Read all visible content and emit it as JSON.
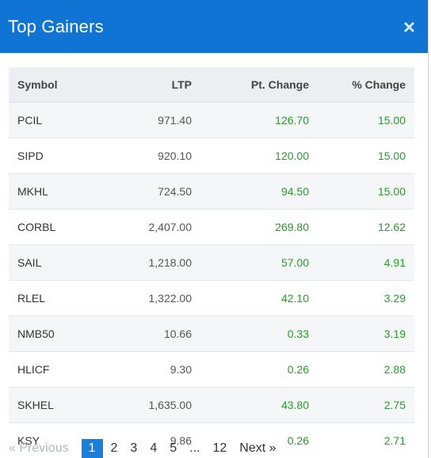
{
  "modal": {
    "title": "Top Gainers",
    "close_glyph": "×"
  },
  "table": {
    "columns": [
      "Symbol",
      "LTP",
      "Pt. Change",
      "% Change"
    ],
    "rows": [
      {
        "symbol": "PCIL",
        "ltp": "971.40",
        "pt_change": "126.70",
        "pct_change": "15.00"
      },
      {
        "symbol": "SIPD",
        "ltp": "920.10",
        "pt_change": "120.00",
        "pct_change": "15.00"
      },
      {
        "symbol": "MKHL",
        "ltp": "724.50",
        "pt_change": "94.50",
        "pct_change": "15.00"
      },
      {
        "symbol": "CORBL",
        "ltp": "2,407.00",
        "pt_change": "269.80",
        "pct_change": "12.62"
      },
      {
        "symbol": "SAIL",
        "ltp": "1,218.00",
        "pt_change": "57.00",
        "pct_change": "4.91"
      },
      {
        "symbol": "RLEL",
        "ltp": "1,322.00",
        "pt_change": "42.10",
        "pct_change": "3.29"
      },
      {
        "symbol": "NMB50",
        "ltp": "10.66",
        "pt_change": "0.33",
        "pct_change": "3.19"
      },
      {
        "symbol": "HLICF",
        "ltp": "9.30",
        "pt_change": "0.26",
        "pct_change": "2.88"
      },
      {
        "symbol": "SKHEL",
        "ltp": "1,635.00",
        "pt_change": "43.80",
        "pct_change": "2.75"
      },
      {
        "symbol": "KSY",
        "ltp": "9.86",
        "pt_change": "0.26",
        "pct_change": "2.71"
      }
    ]
  },
  "pagination": {
    "previous": "« Previous",
    "pages": [
      "1",
      "2",
      "3",
      "4",
      "5",
      "...",
      "12"
    ],
    "current": "1",
    "next": "Next »"
  },
  "colors": {
    "header_bg": "#0f74d3",
    "gain_green": "#2a9a2a",
    "active_page": "#1a7fd8"
  }
}
